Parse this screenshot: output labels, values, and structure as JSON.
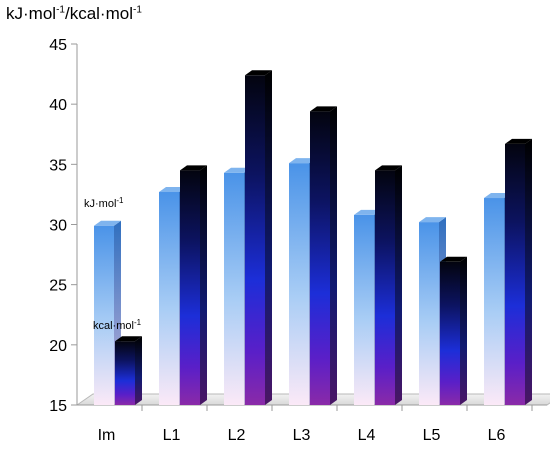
{
  "chart_data": {
    "type": "bar",
    "title_parts": [
      "kJ·mol",
      "-1",
      "/kcal·mol",
      "-1"
    ],
    "ylim": [
      15,
      45
    ],
    "yticks": [
      15,
      20,
      25,
      30,
      35,
      40,
      45
    ],
    "categories": [
      "Im",
      "L1",
      "L2",
      "L3",
      "L4",
      "L5",
      "L6"
    ],
    "series": [
      {
        "values": [
          29.9,
          32.7,
          34.3,
          35.1,
          30.8,
          30.2,
          32.2
        ]
      },
      {
        "values": [
          20.3,
          34.5,
          42.4,
          39.4,
          34.5,
          26.9,
          36.7
        ]
      }
    ],
    "annotations": {
      "kj": {
        "base": "kJ·mol",
        "exp": "-1"
      },
      "kcal": {
        "base": "kcal·mol",
        "exp": "-1"
      }
    },
    "colors": {
      "kj_top": "#4a93e8",
      "kj_bottom": "#fbe7f6",
      "kcal_top": "#060a20",
      "kcal_mid": "#1a2ad8",
      "kcal_bottom": "#7a1fb4",
      "floor": "#e6e6e6"
    },
    "grid": false,
    "legend": "none"
  }
}
